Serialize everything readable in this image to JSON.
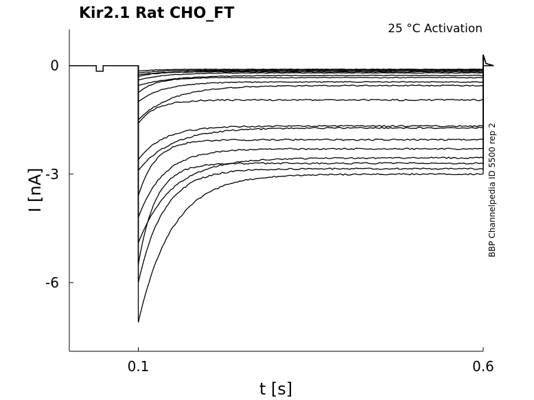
{
  "chart_data": {
    "type": "line",
    "title": "Kir2.1  Rat  CHO_FT",
    "subtitle": "25 °C  Activation",
    "side_note": "BBP Channelpedia ID 5500 rep 2",
    "xlabel": "t [s]",
    "ylabel": "I [nA]",
    "xlim": [
      0.0,
      0.6
    ],
    "ylim": [
      -7.9,
      1.0
    ],
    "x_ticks": [
      {
        "value": 0.1,
        "label": "0.1"
      },
      {
        "value": 0.6,
        "label": "0.6"
      }
    ],
    "y_ticks": [
      {
        "value": 0,
        "label": "0"
      },
      {
        "value": -3,
        "label": "-3"
      },
      {
        "value": -6,
        "label": "-6"
      }
    ],
    "grid": false,
    "prepulse": {
      "start": 0.039,
      "end": 0.049,
      "amplitude": -0.15
    },
    "step": {
      "start": 0.1,
      "end": 0.6
    },
    "series": [
      {
        "peak": -0.15,
        "steady": -0.1
      },
      {
        "peak": -0.2,
        "steady": -0.12
      },
      {
        "peak": -0.25,
        "steady": -0.14
      },
      {
        "peak": -0.3,
        "steady": -0.17
      },
      {
        "peak": -0.4,
        "steady": -0.2
      },
      {
        "peak": -0.55,
        "steady": -0.27
      },
      {
        "peak": -0.75,
        "steady": -0.33
      },
      {
        "peak": -1.0,
        "steady": -0.45
      },
      {
        "peak": -1.5,
        "steady": -0.55
      },
      {
        "peak": -1.6,
        "steady": -0.95
      },
      {
        "peak": -2.6,
        "steady": -1.67
      },
      {
        "peak": -2.9,
        "steady": -1.72
      },
      {
        "peak": -3.6,
        "steady": -2.05
      },
      {
        "peak": -4.2,
        "steady": -2.3
      },
      {
        "peak": -4.9,
        "steady": -2.55
      },
      {
        "peak": -5.5,
        "steady": -2.7
      },
      {
        "peak": -6.0,
        "steady": -2.85
      },
      {
        "peak": -7.1,
        "steady": -3.0
      }
    ]
  }
}
